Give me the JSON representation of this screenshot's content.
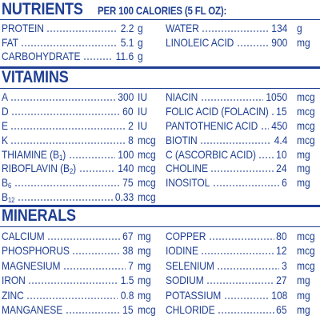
{
  "nutrients": {
    "title": "NUTRIENTS",
    "subtitle": "PER 100 CALORIES (5 FL OZ):",
    "left": [
      {
        "name": "PROTEIN",
        "value": "2.2",
        "unit": "g"
      },
      {
        "name": "FAT",
        "value": "5.1",
        "unit": "g"
      },
      {
        "name": "CARBOHYDRATE",
        "value": "11.6",
        "unit": "g"
      }
    ],
    "right": [
      {
        "name": "WATER",
        "value": "134",
        "unit": "g"
      },
      {
        "name": "LINOLEIC ACID",
        "value": "900",
        "unit": "mg"
      }
    ]
  },
  "vitamins": {
    "title": "VITAMINS",
    "left": [
      {
        "name": "A",
        "value": "300",
        "unit": "IU"
      },
      {
        "name": "D",
        "value": "60",
        "unit": "IU"
      },
      {
        "name": "E",
        "value": "2",
        "unit": "IU"
      },
      {
        "name": "K",
        "value": "8",
        "unit": "mcg"
      },
      {
        "name": "THIAMINE (B1)",
        "value": "100",
        "unit": "mcg"
      },
      {
        "name": "RIBOFLAVIN (B2)",
        "value": "140",
        "unit": "mcg"
      },
      {
        "name": "B6",
        "value": "75",
        "unit": "mcg"
      },
      {
        "name": "B12",
        "value": "0.33",
        "unit": "mcg"
      }
    ],
    "right": [
      {
        "name": "NIACIN",
        "value": "1050",
        "unit": "mcg"
      },
      {
        "name": "FOLIC ACID (FOLACIN)",
        "value": "15",
        "unit": "mcg"
      },
      {
        "name": "PANTOTHENIC ACID",
        "value": "450",
        "unit": "mcg"
      },
      {
        "name": "BIOTIN",
        "value": "4.4",
        "unit": "mcg"
      },
      {
        "name": "C (ASCORBIC ACID)",
        "value": "10",
        "unit": "mg"
      },
      {
        "name": "CHOLINE",
        "value": "24",
        "unit": "mg"
      },
      {
        "name": "INOSITOL",
        "value": "6",
        "unit": "mg"
      }
    ]
  },
  "minerals": {
    "title": "MINERALS",
    "left": [
      {
        "name": "CALCIUM",
        "value": "67",
        "unit": "mg"
      },
      {
        "name": "PHOSPHORUS",
        "value": "38",
        "unit": "mg"
      },
      {
        "name": "MAGNESIUM",
        "value": "7",
        "unit": "mg"
      },
      {
        "name": "IRON",
        "value": "1.5",
        "unit": "mg"
      },
      {
        "name": "ZINC",
        "value": "0.8",
        "unit": "mg"
      },
      {
        "name": "MANGANESE",
        "value": "15",
        "unit": "mcg"
      }
    ],
    "right": [
      {
        "name": "COPPER",
        "value": "80",
        "unit": "mcg"
      },
      {
        "name": "IODINE",
        "value": "12",
        "unit": "mcg"
      },
      {
        "name": "SELENIUM",
        "value": "3",
        "unit": "mcg"
      },
      {
        "name": "SODIUM",
        "value": "27",
        "unit": "mg"
      },
      {
        "name": "POTASSIUM",
        "value": "108",
        "unit": "mg"
      },
      {
        "name": "CHLORIDE",
        "value": "65",
        "unit": "mg"
      }
    ]
  },
  "colors": {
    "ink": "#1f3f93",
    "background": "#ffffff"
  }
}
